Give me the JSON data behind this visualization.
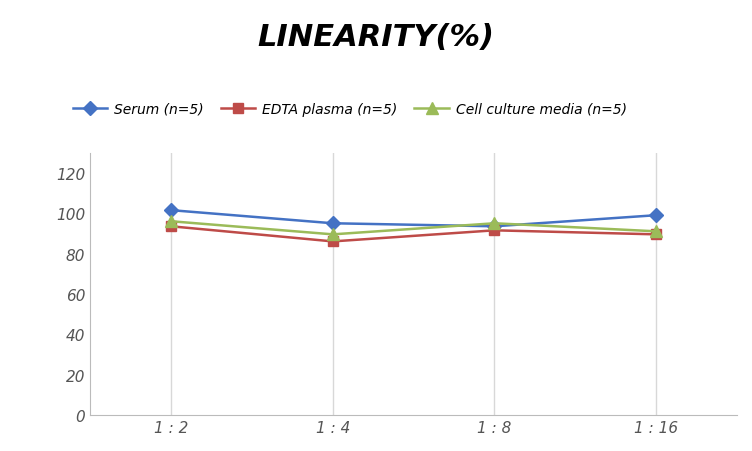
{
  "title": "LINEARITY(%)",
  "title_fontsize": 22,
  "title_fontstyle": "italic",
  "title_fontweight": "bold",
  "x_labels": [
    "1 : 2",
    "1 : 4",
    "1 : 8",
    "1 : 16"
  ],
  "x_positions": [
    0,
    1,
    2,
    3
  ],
  "series": [
    {
      "label": "Serum (n=5)",
      "values": [
        101.5,
        95.0,
        93.5,
        99.0
      ],
      "color": "#4472C4",
      "marker": "D",
      "markersize": 7,
      "linewidth": 1.8,
      "zorder": 3
    },
    {
      "label": "EDTA plasma (n=5)",
      "values": [
        93.5,
        86.0,
        91.5,
        89.5
      ],
      "color": "#BE4B48",
      "marker": "s",
      "markersize": 7,
      "linewidth": 1.8,
      "zorder": 3
    },
    {
      "label": "Cell culture media (n=5)",
      "values": [
        96.0,
        89.5,
        95.0,
        91.0
      ],
      "color": "#9BBB59",
      "marker": "^",
      "markersize": 8,
      "linewidth": 1.8,
      "zorder": 3
    }
  ],
  "ylim": [
    0,
    130
  ],
  "yticks": [
    0,
    20,
    40,
    60,
    80,
    100,
    120
  ],
  "grid_color": "#D8D8D8",
  "background_color": "#FFFFFF",
  "legend_fontsize": 10,
  "tick_fontsize": 11
}
